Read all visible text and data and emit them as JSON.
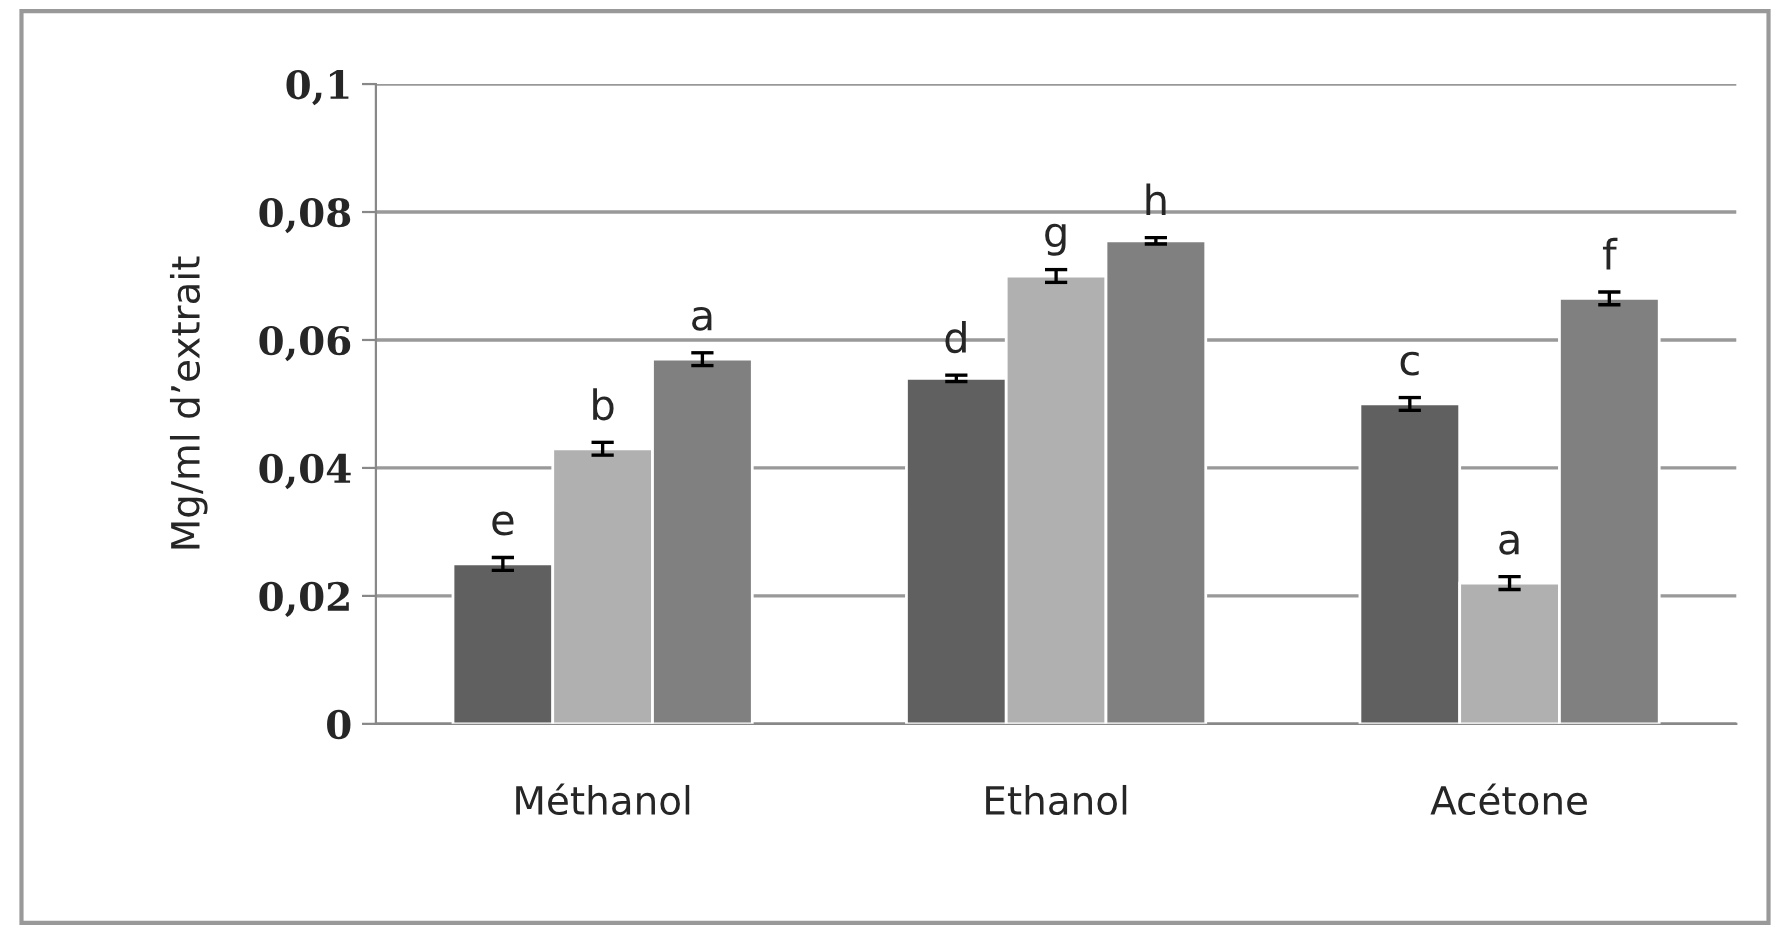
{
  "chart_data": {
    "type": "bar",
    "ylabel": "Mg/ml d’extrait",
    "categories": [
      "Méthanol",
      "Ethanol",
      "Acétone"
    ],
    "series": [
      {
        "color": "#606060",
        "values": [
          0.025,
          0.054,
          0.05
        ],
        "errors": [
          0.001,
          0.0005,
          0.001
        ]
      },
      {
        "color": "#b0b0b0",
        "values": [
          0.043,
          0.07,
          0.022
        ],
        "errors": [
          0.001,
          0.001,
          0.001
        ]
      },
      {
        "color": "#808080",
        "values": [
          0.057,
          0.0755,
          0.0665
        ],
        "errors": [
          0.001,
          0.0005,
          0.001
        ]
      }
    ],
    "ylim": [
      0,
      0.1
    ],
    "yticks": [
      {
        "value": 0,
        "label": "0"
      },
      {
        "value": 0.02,
        "label": "0,02"
      },
      {
        "value": 0.04,
        "label": "0,04"
      },
      {
        "value": 0.06,
        "label": "0,06"
      },
      {
        "value": 0.08,
        "label": "0,08"
      },
      {
        "value": 0.1,
        "label": "0,1"
      }
    ],
    "grid": "y",
    "legend": false,
    "annotations": [
      "e",
      "b",
      "a",
      "d",
      "g",
      "h",
      "c",
      "a",
      "f"
    ]
  }
}
